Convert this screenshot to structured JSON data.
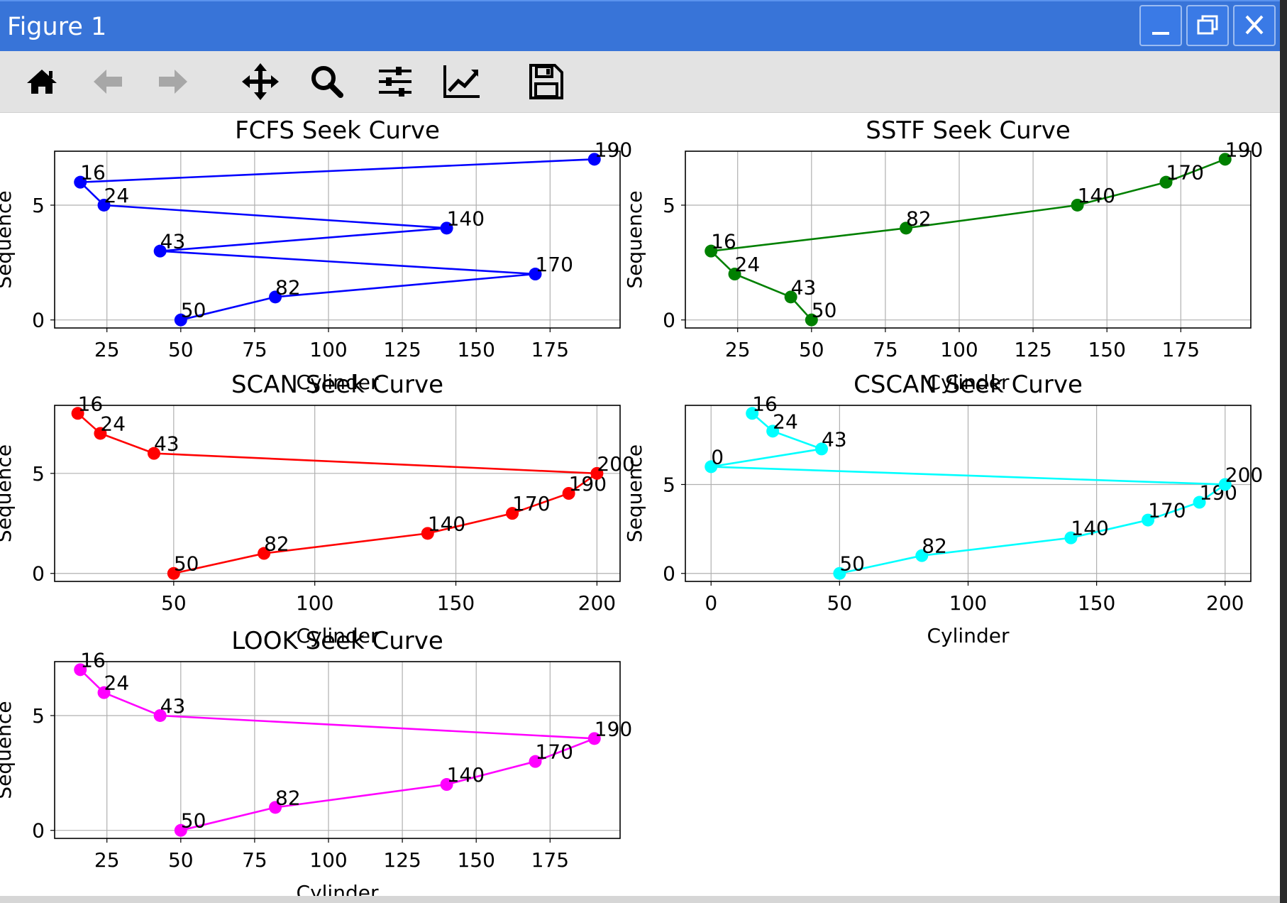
{
  "window": {
    "title": "Figure 1",
    "buttons": [
      "minimize-icon",
      "maximize-icon",
      "close-icon"
    ]
  },
  "toolbar": {
    "items": [
      "home-icon",
      "back-arrow-icon",
      "forward-arrow-icon",
      "pan-icon",
      "zoom-icon",
      "configure-subplots-icon",
      "edit-axes-icon",
      "save-icon"
    ]
  },
  "chart_data": [
    {
      "type": "line",
      "title": "FCFS Seek Curve",
      "xlabel": "Cylinder",
      "ylabel": "Sequence",
      "color": "#0000ff",
      "x": [
        50,
        82,
        170,
        43,
        140,
        24,
        16,
        190
      ],
      "y": [
        0,
        1,
        2,
        3,
        4,
        5,
        6,
        7
      ],
      "point_labels": [
        "50",
        "82",
        "170",
        "43",
        "140",
        "24",
        "16",
        "190"
      ],
      "xlim": [
        7.3,
        198.7
      ],
      "ylim": [
        -0.35,
        7.35
      ],
      "xticks": [
        25,
        50,
        75,
        100,
        125,
        150,
        175
      ],
      "yticks": [
        0,
        5
      ],
      "grid": true
    },
    {
      "type": "line",
      "title": "SSTF Seek Curve",
      "xlabel": "Cylinder",
      "ylabel": "Sequence",
      "color": "#008000",
      "x": [
        50,
        43,
        24,
        16,
        82,
        140,
        170,
        190
      ],
      "y": [
        0,
        1,
        2,
        3,
        4,
        5,
        6,
        7
      ],
      "point_labels": [
        "50",
        "43",
        "24",
        "16",
        "82",
        "140",
        "170",
        "190"
      ],
      "xlim": [
        7.3,
        198.7
      ],
      "ylim": [
        -0.35,
        7.35
      ],
      "xticks": [
        25,
        50,
        75,
        100,
        125,
        150,
        175
      ],
      "yticks": [
        0,
        5
      ],
      "grid": true
    },
    {
      "type": "line",
      "title": "SCAN Seek Curve",
      "xlabel": "Cylinder",
      "ylabel": "Sequence",
      "color": "#ff0000",
      "x": [
        50,
        82,
        140,
        170,
        190,
        200,
        43,
        24,
        16
      ],
      "y": [
        0,
        1,
        2,
        3,
        4,
        5,
        6,
        7,
        8
      ],
      "point_labels": [
        "50",
        "82",
        "140",
        "170",
        "190",
        "200",
        "43",
        "24",
        "16"
      ],
      "xlim": [
        7.8,
        208.2
      ],
      "ylim": [
        -0.4,
        8.4
      ],
      "xticks": [
        50,
        100,
        150,
        200
      ],
      "yticks": [
        0,
        5
      ],
      "grid": true
    },
    {
      "type": "line",
      "title": "CSCAN Seek Curve",
      "xlabel": "Cylinder",
      "ylabel": "Sequence",
      "color": "#00ffff",
      "x": [
        50,
        82,
        140,
        170,
        190,
        200,
        0,
        43,
        24,
        16
      ],
      "y": [
        0,
        1,
        2,
        3,
        4,
        5,
        6,
        7,
        8,
        9
      ],
      "point_labels": [
        "50",
        "82",
        "140",
        "170",
        "190",
        "200",
        "0",
        "43",
        "24",
        "16"
      ],
      "xlim": [
        -10,
        210
      ],
      "ylim": [
        -0.45,
        9.45
      ],
      "xticks": [
        0,
        50,
        100,
        150,
        200
      ],
      "yticks": [
        0,
        5
      ],
      "grid": true
    },
    {
      "type": "line",
      "title": "LOOK Seek Curve",
      "xlabel": "Cylinder",
      "ylabel": "Sequence",
      "color": "#ff00ff",
      "x": [
        50,
        82,
        140,
        170,
        190,
        43,
        24,
        16
      ],
      "y": [
        0,
        1,
        2,
        3,
        4,
        5,
        6,
        7
      ],
      "point_labels": [
        "50",
        "82",
        "140",
        "170",
        "190",
        "43",
        "24",
        "16"
      ],
      "xlim": [
        7.3,
        198.7
      ],
      "ylim": [
        -0.35,
        7.35
      ],
      "xticks": [
        25,
        50,
        75,
        100,
        125,
        150,
        175
      ],
      "yticks": [
        0,
        5
      ],
      "grid": true
    }
  ]
}
